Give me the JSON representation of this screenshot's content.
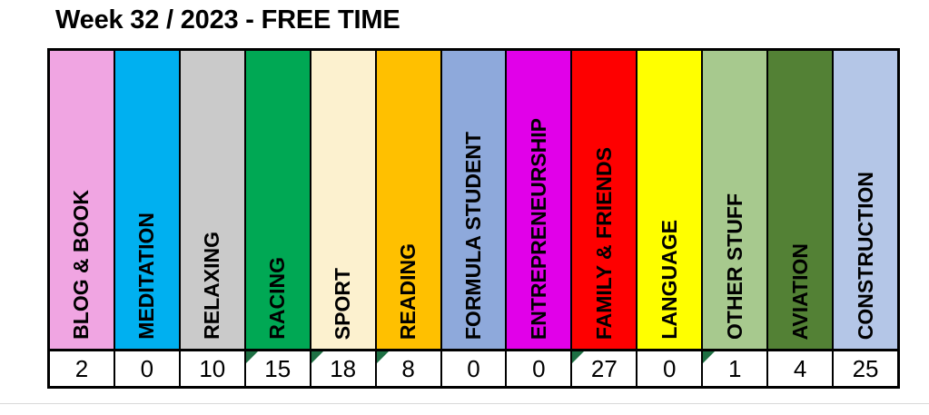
{
  "title": "Week 32 / 2023 - FREE TIME",
  "table": {
    "note_marker_color": "#1E7044",
    "border_color": "#000000",
    "value_row_background": "#ffffff",
    "columns": [
      {
        "label": "BLOG & BOOK",
        "value": "2",
        "color": "#F0A5E2",
        "note_marker": false
      },
      {
        "label": "MEDITATION",
        "value": "0",
        "color": "#00B0F0",
        "note_marker": false
      },
      {
        "label": "RELAXING",
        "value": "10",
        "color": "#CACACA",
        "note_marker": false
      },
      {
        "label": "RACING",
        "value": "15",
        "color": "#00A854",
        "note_marker": true
      },
      {
        "label": "SPORT",
        "value": "18",
        "color": "#FCF1CF",
        "note_marker": true
      },
      {
        "label": "READING",
        "value": "8",
        "color": "#FFC000",
        "note_marker": true
      },
      {
        "label": "FORMULA STUDENT",
        "value": "0",
        "color": "#8EA9DB",
        "note_marker": false
      },
      {
        "label": "ENTREPRENEURSHIP",
        "value": "0",
        "color": "#E100E9",
        "note_marker": false
      },
      {
        "label": "FAMILY & FRIENDS",
        "value": "27",
        "color": "#FE0000",
        "note_marker": true
      },
      {
        "label": "LANGUAGE",
        "value": "0",
        "color": "#FFFF00",
        "note_marker": false
      },
      {
        "label": "OTHER STUFF",
        "value": "1",
        "color": "#A7C98E",
        "note_marker": true
      },
      {
        "label": "AVIATION",
        "value": "4",
        "color": "#538135",
        "note_marker": false
      },
      {
        "label": "CONSTRUCTION",
        "value": "25",
        "color": "#B4C6E7",
        "note_marker": false
      }
    ]
  },
  "chart_data": {
    "type": "table",
    "title": "Week 32 / 2023 - FREE TIME",
    "categories": [
      "BLOG & BOOK",
      "MEDITATION",
      "RELAXING",
      "RACING",
      "SPORT",
      "READING",
      "FORMULA STUDENT",
      "ENTREPRENEURSHIP",
      "FAMILY & FRIENDS",
      "LANGUAGE",
      "OTHER STUFF",
      "AVIATION",
      "CONSTRUCTION"
    ],
    "values": [
      2,
      0,
      10,
      15,
      18,
      8,
      0,
      0,
      27,
      0,
      1,
      4,
      25
    ],
    "cells_with_note_markers": [
      "RACING",
      "SPORT",
      "READING",
      "FAMILY & FRIENDS",
      "OTHER STUFF"
    ]
  }
}
